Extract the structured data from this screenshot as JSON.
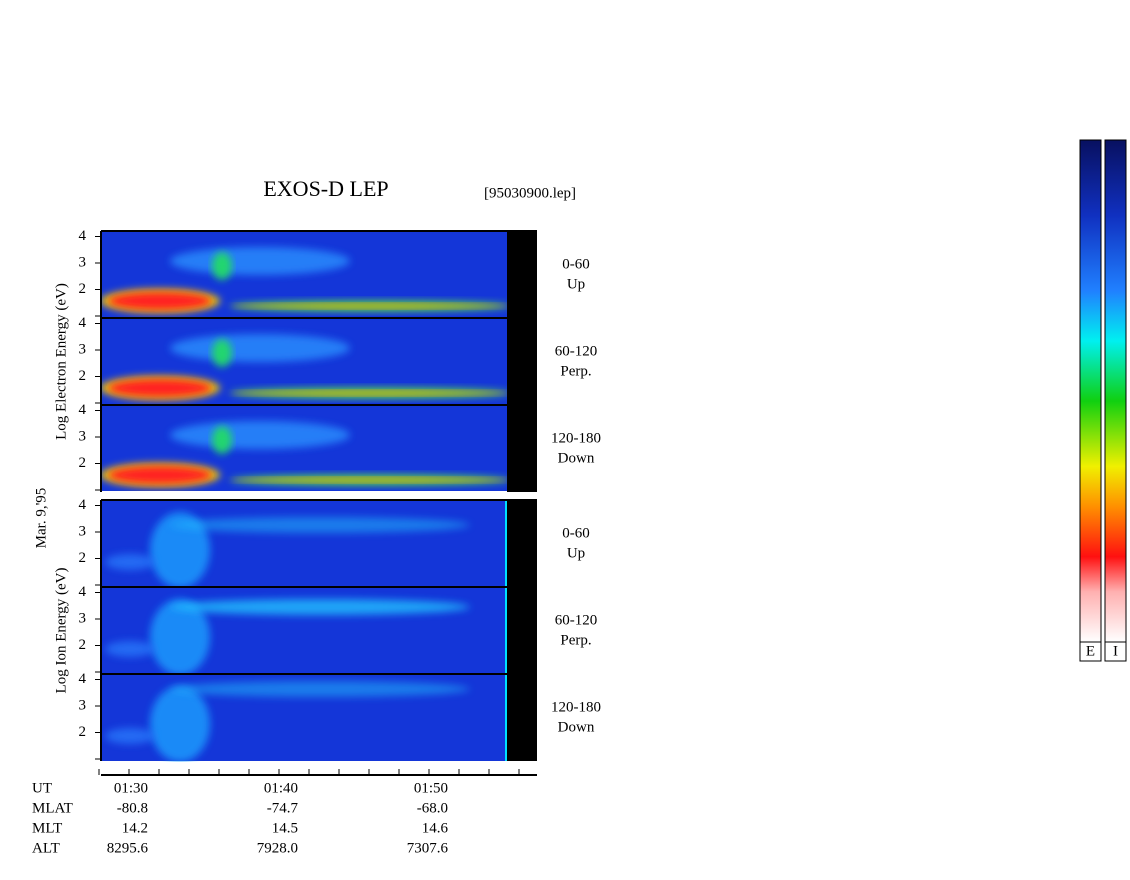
{
  "title": "EXOS-D LEP",
  "file": "[95030900.lep]",
  "date": "Mar. 9,'95",
  "groups": [
    {
      "axis_label": "Log  Electron  Energy (eV)",
      "panels": [
        {
          "pitch": "0-60",
          "direction": "Up"
        },
        {
          "pitch": "60-120",
          "direction": "Perp."
        },
        {
          "pitch": "120-180",
          "direction": "Down"
        }
      ]
    },
    {
      "axis_label": "Log  Ion  Energy (eV)",
      "panels": [
        {
          "pitch": "0-60",
          "direction": "Up"
        },
        {
          "pitch": "60-120",
          "direction": "Perp."
        },
        {
          "pitch": "120-180",
          "direction": "Down"
        }
      ]
    }
  ],
  "energy_ticks": [
    2,
    3,
    4
  ],
  "ephemeris": {
    "rows": [
      [
        "UT",
        "01:30",
        "01:40",
        "01:50"
      ],
      [
        "MLAT",
        "-80.8",
        "-74.7",
        "-68.0"
      ],
      [
        "MLT",
        "14.2",
        "14.5",
        "14.6"
      ],
      [
        "ALT",
        "8295.6",
        "7928.0",
        "7307.6"
      ]
    ]
  },
  "colorbar_labels": [
    "E",
    "I"
  ]
}
